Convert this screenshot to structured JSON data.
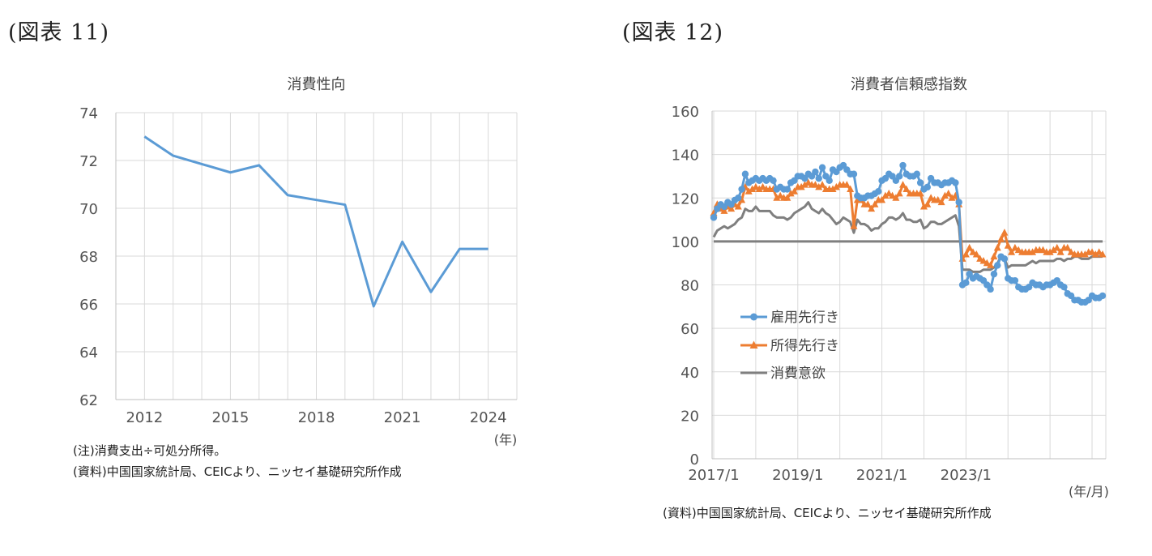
{
  "figures": {
    "left_label": "(図表 11)",
    "right_label": "(図表 12)"
  },
  "notes": {
    "left_note": "(注)消費支出÷可処分所得。",
    "left_source": "(資料)中国国家統計局、CEICより、ニッセイ基礎研究所作成",
    "right_source": "(資料)中国国家統計局、CEICより、ニッセイ基礎研究所作成"
  },
  "chart_data": [
    {
      "type": "line",
      "title": "消費性向",
      "xlabel": "",
      "ylabel": "",
      "x_unit_label": "(年)",
      "x": [
        2012,
        2013,
        2014,
        2015,
        2016,
        2017,
        2018,
        2019,
        2020,
        2021,
        2022,
        2023,
        2024
      ],
      "x_ticks": [
        "2012",
        "2015",
        "2018",
        "2021",
        "2024"
      ],
      "x_tick_values": [
        2012,
        2015,
        2018,
        2021,
        2024
      ],
      "ylim": [
        62,
        74
      ],
      "y_ticks": [
        62,
        64,
        66,
        68,
        70,
        72,
        74
      ],
      "grid": true,
      "series": [
        {
          "name": "",
          "color": "#5b9bd5",
          "values": [
            73.0,
            72.2,
            71.85,
            71.5,
            71.8,
            70.55,
            70.35,
            70.15,
            65.9,
            68.6,
            66.5,
            68.3,
            68.3
          ]
        }
      ]
    },
    {
      "type": "line",
      "title": "消費者信頼感指数",
      "xlabel": "",
      "ylabel": "",
      "x_unit_label": "(年/月)",
      "x_start": "2017/1",
      "x_end": "2024/12",
      "x_ticks": [
        "2017/1",
        "2019/1",
        "2021/1",
        "2023/1"
      ],
      "ylim": [
        0,
        160
      ],
      "y_ticks": [
        0,
        20,
        40,
        60,
        80,
        100,
        120,
        140,
        160
      ],
      "grid": true,
      "legend_position": "lower-left",
      "reference_line": {
        "value": 100,
        "color": "#7f7f7f"
      },
      "series": [
        {
          "name": "雇用先行き",
          "color": "#5b9bd5",
          "marker": "circle",
          "values": [
            111,
            115,
            117,
            116,
            118,
            117,
            119,
            120,
            124,
            131,
            127,
            128,
            129,
            128,
            129,
            128,
            129,
            128,
            124,
            125,
            124,
            124,
            127,
            128,
            130,
            130,
            129,
            131,
            130,
            132,
            129,
            134,
            130,
            128,
            133,
            132,
            134,
            135,
            133,
            131,
            131,
            121,
            120,
            120,
            121,
            121,
            122,
            123,
            128,
            129,
            131,
            130,
            128,
            130,
            135,
            131,
            130,
            130,
            131,
            127,
            124,
            125,
            129,
            127,
            127,
            126,
            127,
            127,
            128,
            127,
            118,
            80,
            81,
            85,
            83,
            84,
            83,
            82,
            80,
            78,
            85,
            89,
            93,
            92,
            83,
            82,
            82,
            79,
            78,
            78,
            79,
            81,
            80,
            80,
            79,
            80,
            80,
            81,
            82,
            80,
            79,
            76,
            75,
            73,
            73,
            72,
            72,
            73,
            75,
            74,
            74,
            75
          ]
        },
        {
          "name": "所得先行き",
          "color": "#ed7d31",
          "marker": "triangle",
          "values": [
            113,
            117,
            115,
            114,
            116,
            115,
            117,
            116,
            119,
            125,
            123,
            124,
            125,
            124,
            125,
            124,
            124,
            124,
            120,
            121,
            120,
            120,
            122,
            123,
            125,
            125,
            126,
            127,
            126,
            126,
            125,
            126,
            124,
            124,
            124,
            125,
            126,
            126,
            126,
            124,
            107,
            119,
            119,
            117,
            117,
            115,
            117,
            119,
            119,
            121,
            122,
            121,
            120,
            122,
            126,
            124,
            122,
            122,
            122,
            122,
            116,
            117,
            120,
            119,
            119,
            118,
            121,
            122,
            120,
            121,
            117,
            92,
            94,
            97,
            95,
            94,
            92,
            91,
            90,
            89,
            93,
            97,
            101,
            104,
            98,
            95,
            97,
            96,
            95,
            95,
            95,
            95,
            96,
            96,
            96,
            95,
            95,
            96,
            97,
            95,
            97,
            97,
            95,
            94,
            94,
            94,
            94,
            95,
            95,
            94,
            95,
            94
          ]
        },
        {
          "name": "消費意欲",
          "color": "#7f7f7f",
          "marker": "none",
          "values": [
            102,
            105,
            106,
            107,
            106,
            107,
            108,
            110,
            111,
            115,
            114,
            114,
            116,
            114,
            114,
            114,
            114,
            112,
            111,
            111,
            111,
            110,
            111,
            113,
            114,
            115,
            116,
            118,
            115,
            114,
            113,
            115,
            113,
            112,
            110,
            108,
            109,
            111,
            110,
            109,
            104,
            110,
            108,
            108,
            107,
            105,
            106,
            106,
            108,
            109,
            111,
            111,
            110,
            111,
            113,
            110,
            110,
            109,
            109,
            110,
            106,
            107,
            109,
            109,
            108,
            108,
            109,
            110,
            111,
            112,
            107,
            87,
            87,
            87,
            86,
            86,
            86,
            87,
            87,
            87,
            88,
            90,
            93,
            92,
            88,
            89,
            89,
            89,
            89,
            89,
            90,
            91,
            90,
            91,
            91,
            91,
            91,
            91,
            92,
            92,
            91,
            92,
            92,
            93,
            93,
            92,
            92,
            92,
            93,
            93,
            93,
            93
          ]
        }
      ]
    }
  ]
}
